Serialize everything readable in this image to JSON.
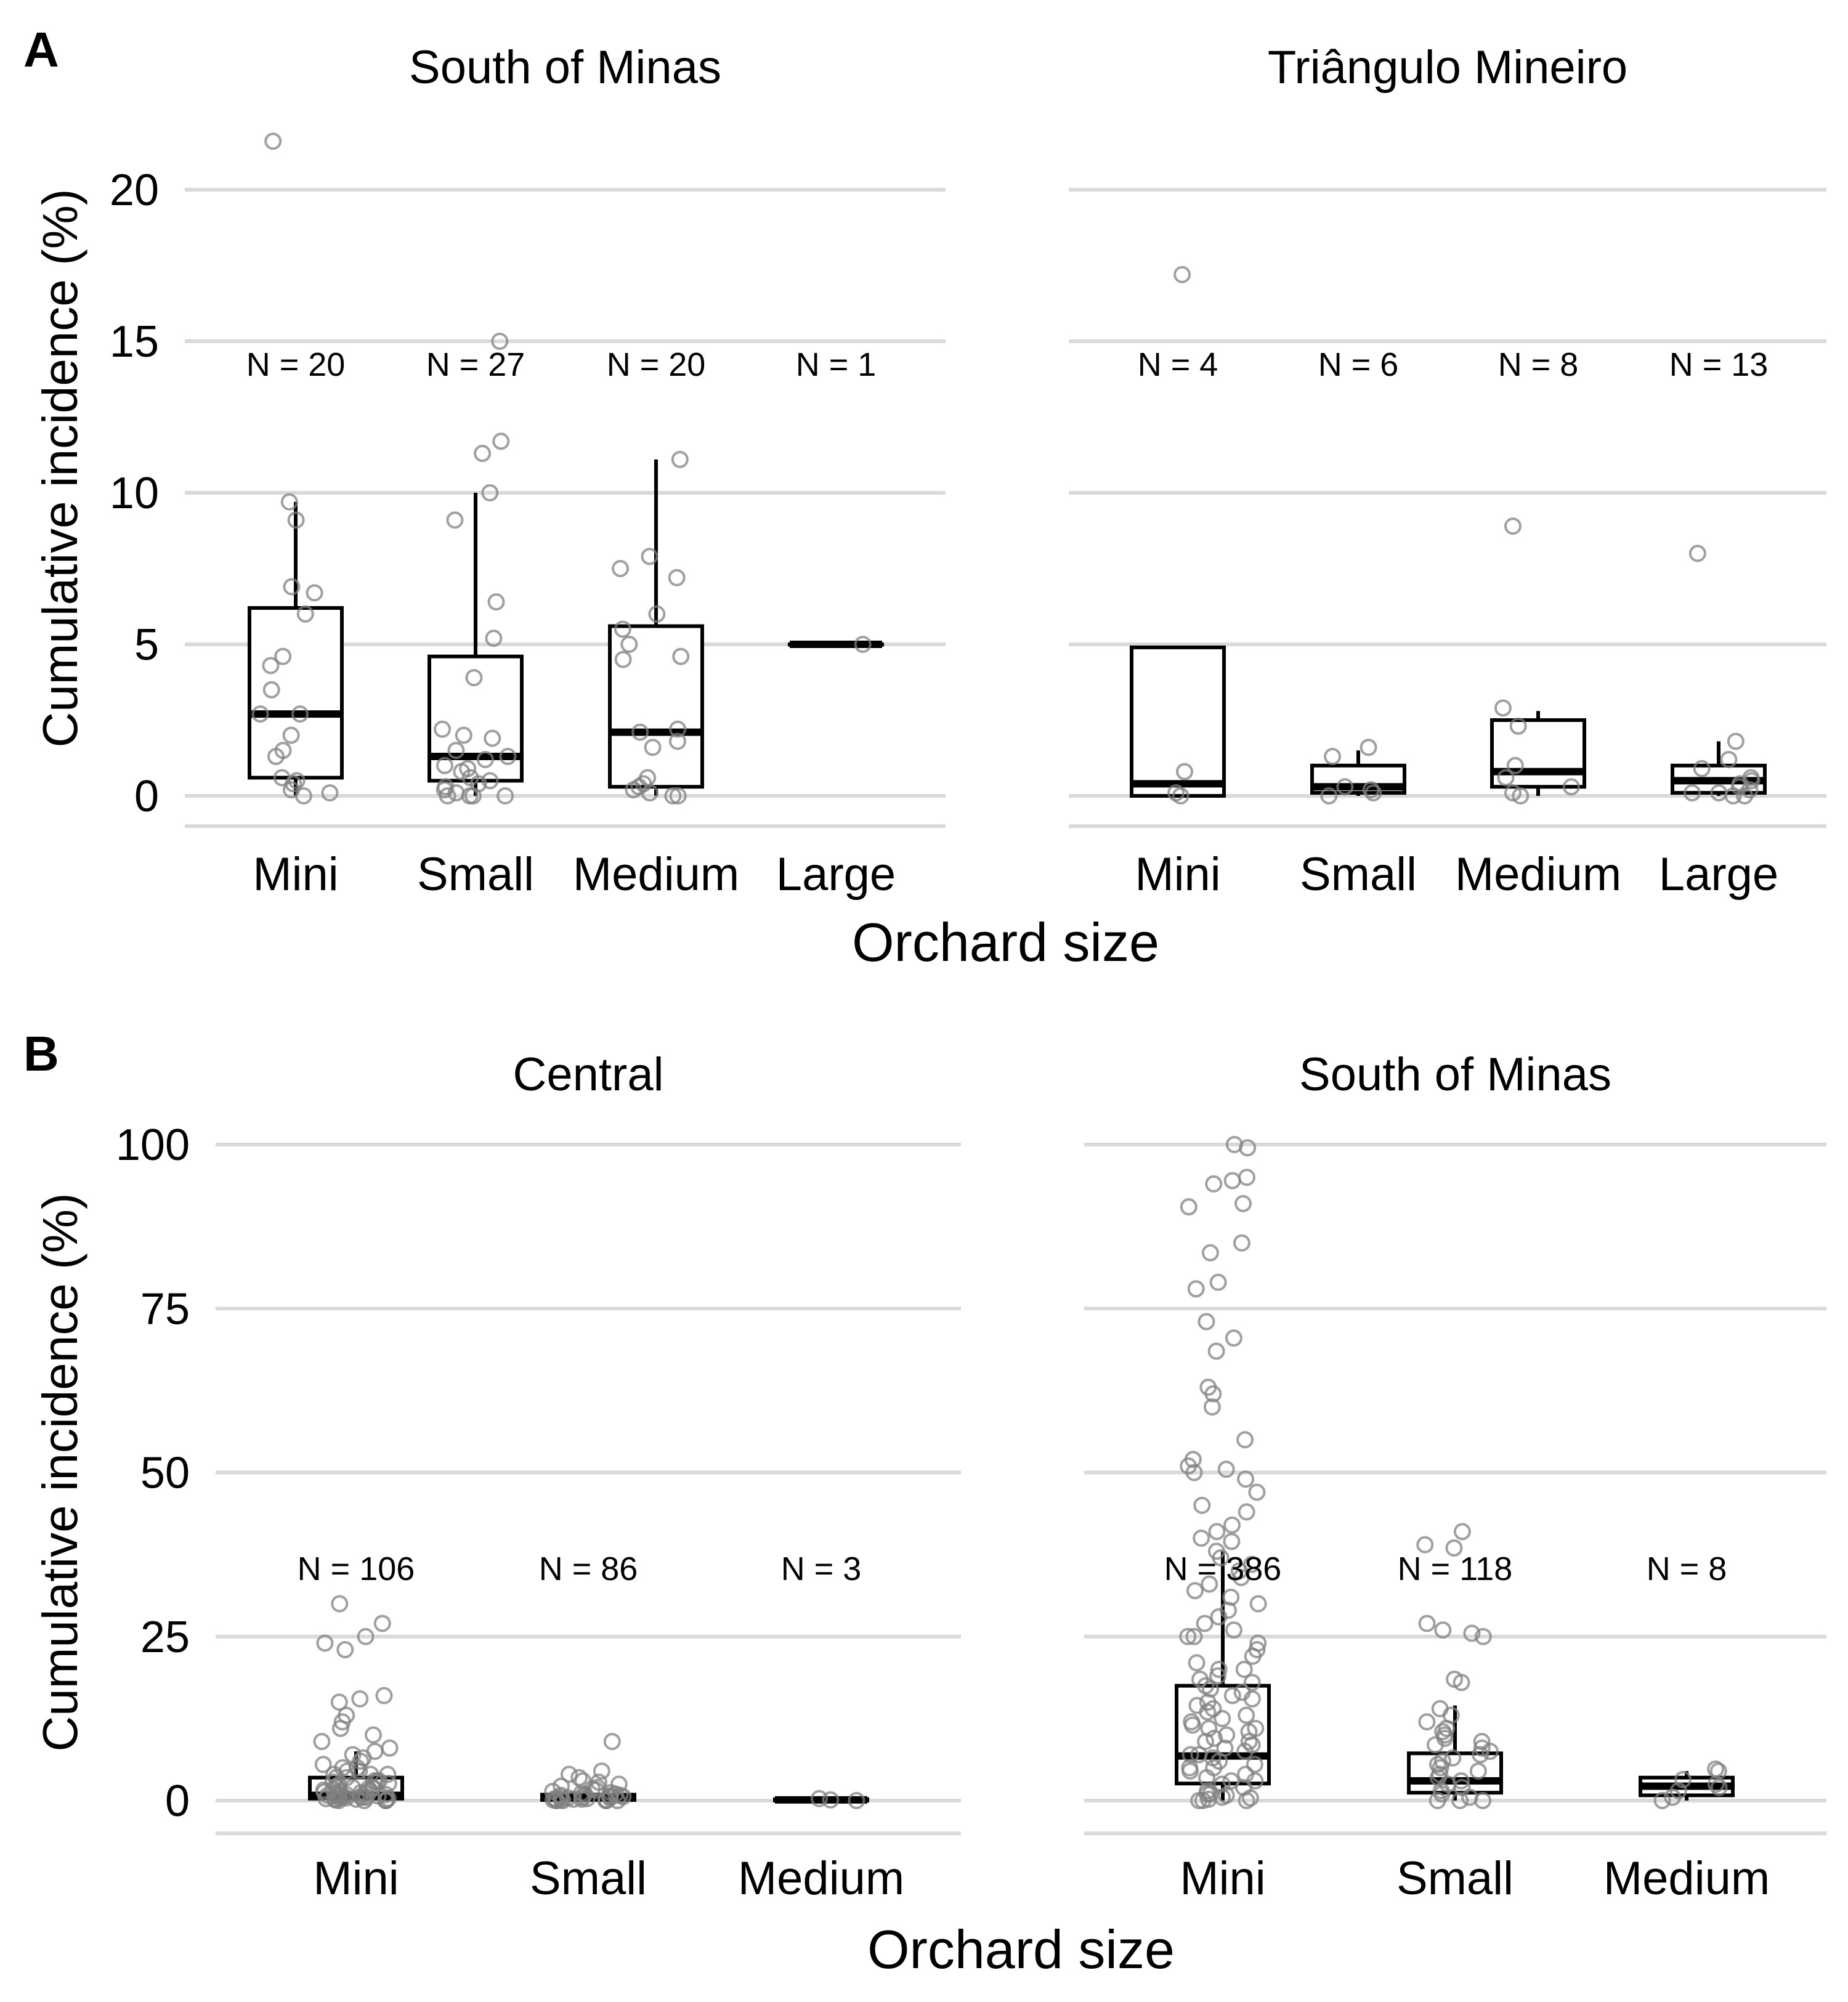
{
  "chart_data": [
    {
      "type": "box",
      "panel_label": "A",
      "ylabel": "Cumulative incidence (%)",
      "xlabel": "Orchard size",
      "y_ticks": [
        "0",
        "5",
        "10",
        "15",
        "20"
      ],
      "ylim": [
        -1,
        22.5
      ],
      "grid": "horizontal",
      "facets": [
        {
          "title": "South of Minas",
          "categories": [
            "Mini",
            "Small",
            "Medium",
            "Large"
          ],
          "n_labels": [
            "N = 20",
            "N = 27",
            "N = 20",
            "N = 1"
          ],
          "boxes": [
            {
              "q1": 0.6,
              "median": 2.7,
              "q3": 6.2,
              "whisker_low": 0.0,
              "whisker_high": 9.7
            },
            {
              "q1": 0.5,
              "median": 1.3,
              "q3": 4.6,
              "whisker_low": 0.0,
              "whisker_high": 10.0
            },
            {
              "q1": 0.3,
              "median": 2.1,
              "q3": 5.6,
              "whisker_low": 0.0,
              "whisker_high": 11.1
            },
            {
              "q1": 5.0,
              "median": 5.0,
              "q3": 5.0,
              "whisker_low": 5.0,
              "whisker_high": 5.0
            }
          ],
          "points": [
            [
              21.6,
              9.7,
              9.1,
              6.9,
              6.7,
              6.0,
              4.6,
              4.3,
              3.5,
              2.7,
              2.7,
              2.0,
              1.5,
              1.3,
              0.6,
              0.5,
              0.4,
              0.2,
              0.1,
              0.0
            ],
            [
              15.0,
              11.7,
              11.3,
              10.0,
              9.1,
              6.4,
              5.2,
              3.9,
              2.2,
              2.0,
              1.9,
              1.5,
              1.3,
              1.2,
              1.0,
              0.9,
              0.8,
              0.6,
              0.5,
              0.4,
              0.3,
              0.2,
              0.1,
              0.0,
              0.0,
              0.0,
              0.0
            ],
            [
              11.1,
              7.9,
              7.5,
              7.2,
              6.0,
              5.5,
              5.0,
              4.6,
              4.5,
              2.2,
              2.1,
              1.8,
              1.6,
              0.6,
              0.4,
              0.3,
              0.2,
              0.1,
              0.0,
              0.0
            ],
            [
              5.0
            ]
          ]
        },
        {
          "title": "Triângulo Mineiro",
          "categories": [
            "Mini",
            "Small",
            "Medium",
            "Large"
          ],
          "n_labels": [
            "N = 4",
            "N = 6",
            "N = 8",
            "N = 13"
          ],
          "boxes": [
            {
              "q1": 0.0,
              "median": 0.4,
              "q3": 4.9,
              "whisker_low": 0.0,
              "whisker_high": 4.9
            },
            {
              "q1": 0.1,
              "median": 0.3,
              "q3": 1.0,
              "whisker_low": 0.0,
              "whisker_high": 1.5
            },
            {
              "q1": 0.3,
              "median": 0.8,
              "q3": 2.5,
              "whisker_low": 0.0,
              "whisker_high": 2.8
            },
            {
              "q1": 0.1,
              "median": 0.5,
              "q3": 1.0,
              "whisker_low": 0.0,
              "whisker_high": 1.8
            }
          ],
          "points": [
            [
              17.2,
              0.8,
              0.1,
              0.0
            ],
            [
              1.6,
              1.3,
              0.3,
              0.2,
              0.1,
              0.0
            ],
            [
              8.9,
              2.9,
              2.3,
              1.0,
              0.6,
              0.3,
              0.1,
              0.0
            ],
            [
              8.0,
              1.8,
              1.2,
              0.9,
              0.6,
              0.5,
              0.4,
              0.3,
              0.2,
              0.1,
              0.1,
              0.0,
              0.0
            ]
          ]
        }
      ]
    },
    {
      "type": "box",
      "panel_label": "B",
      "ylabel": "Cumulative incidence (%)",
      "xlabel": "Orchard size",
      "y_ticks": [
        "0",
        "25",
        "50",
        "75",
        "100"
      ],
      "ylim": [
        -5,
        102
      ],
      "grid": "horizontal",
      "facets": [
        {
          "title": "Central",
          "categories": [
            "Mini",
            "Small",
            "Medium"
          ],
          "n_labels": [
            "N = 106",
            "N = 86",
            "N = 3"
          ],
          "boxes": [
            {
              "q1": 0.3,
              "median": 0.8,
              "q3": 3.5,
              "whisker_low": 0.0,
              "whisker_high": 7.5
            },
            {
              "q1": 0.1,
              "median": 0.4,
              "q3": 0.9,
              "whisker_low": 0.0,
              "whisker_high": 2.0
            },
            {
              "q1": 0.0,
              "median": 0.1,
              "q3": 0.2,
              "whisker_low": 0.0,
              "whisker_high": 0.3
            }
          ],
          "points": [
            [
              30,
              27,
              25,
              24,
              23,
              16,
              15.5,
              15,
              13,
              12,
              11,
              10,
              9,
              8,
              7.5,
              7,
              6.5,
              6,
              5.5,
              5,
              5,
              4.5,
              4.5,
              4,
              4,
              4,
              3.5,
              3.5,
              3,
              3,
              3,
              2.8,
              2.6,
              2.4,
              2.2,
              2,
              2,
              1.9,
              1.8,
              1.7,
              1.6,
              1.5,
              1.4,
              1.3,
              1.2,
              1.1,
              1,
              1,
              0.9,
              0.9,
              0.8,
              0.8,
              0.7,
              0.7,
              0.6,
              0.6,
              0.5,
              0.5,
              0.4,
              0.4,
              0.3,
              0.3,
              0.2,
              0.2,
              0.1,
              0.1,
              0,
              0,
              0,
              0
            ],
            [
              9,
              4.5,
              4,
              3.5,
              3,
              2.8,
              2.5,
              2.2,
              2,
              1.8,
              1.6,
              1.4,
              1.2,
              1.1,
              1,
              0.9,
              0.8,
              0.8,
              0.7,
              0.6,
              0.6,
              0.5,
              0.5,
              0.4,
              0.4,
              0.3,
              0.3,
              0.2,
              0.2,
              0.1,
              0.1,
              0.1,
              0,
              0,
              0,
              0,
              0,
              0
            ],
            [
              0.3,
              0.1,
              0.0
            ]
          ]
        },
        {
          "title": "South of Minas",
          "categories": [
            "Mini",
            "Small",
            "Medium"
          ],
          "n_labels": [
            "N = 386",
            "N = 118",
            "N = 8"
          ],
          "boxes": [
            {
              "q1": 2.6,
              "median": 6.8,
              "q3": 17.5,
              "whisker_low": 0.0,
              "whisker_high": 38.0
            },
            {
              "q1": 1.2,
              "median": 3.0,
              "q3": 7.2,
              "whisker_low": 0.0,
              "whisker_high": 14.5
            },
            {
              "q1": 0.8,
              "median": 2.2,
              "q3": 3.5,
              "whisker_low": 0.0,
              "whisker_high": 4.5
            }
          ],
          "points": [
            [
              100,
              99.5,
              95,
              94.5,
              94,
              91,
              90.5,
              85,
              83.5,
              79,
              78,
              73,
              70.5,
              68.5,
              63,
              62,
              60,
              55,
              52,
              51,
              50.5,
              50,
              49,
              47,
              45,
              44,
              42,
              41,
              40,
              39.5,
              38,
              37,
              36,
              35,
              34,
              33,
              32,
              31,
              30,
              29,
              28,
              27,
              26,
              25,
              25,
              24,
              23,
              22,
              21,
              20,
              20,
              19,
              18.5,
              18,
              17.5,
              17,
              16.5,
              16,
              15.5,
              15,
              14.5,
              14,
              13.5,
              13,
              12.5,
              12,
              11.5,
              11,
              10.5,
              10,
              9.5,
              9,
              8.5,
              8,
              7.5,
              7,
              6.5,
              6,
              5.5,
              5,
              4.5,
              4,
              3.5,
              3,
              2.5,
              2,
              1.5,
              1,
              0.5,
              0,
              11,
              9,
              7,
              5,
              3,
              1,
              0.8,
              0.4,
              0.2,
              0,
              0
            ],
            [
              41,
              39,
              38.5,
              27,
              26,
              25.5,
              25,
              18.5,
              18,
              14,
              13,
              12,
              11,
              10.5,
              10,
              9.5,
              9,
              8.5,
              8,
              7.5,
              7,
              6.5,
              6,
              5.5,
              5,
              4.5,
              4,
              3.5,
              3,
              2.5,
              2,
              1.5,
              1,
              0.5,
              0,
              0,
              0
            ],
            [
              4.8,
              4.5,
              3.2,
              2.5,
              2.0,
              1.5,
              0.5,
              0.0
            ]
          ]
        }
      ]
    }
  ]
}
